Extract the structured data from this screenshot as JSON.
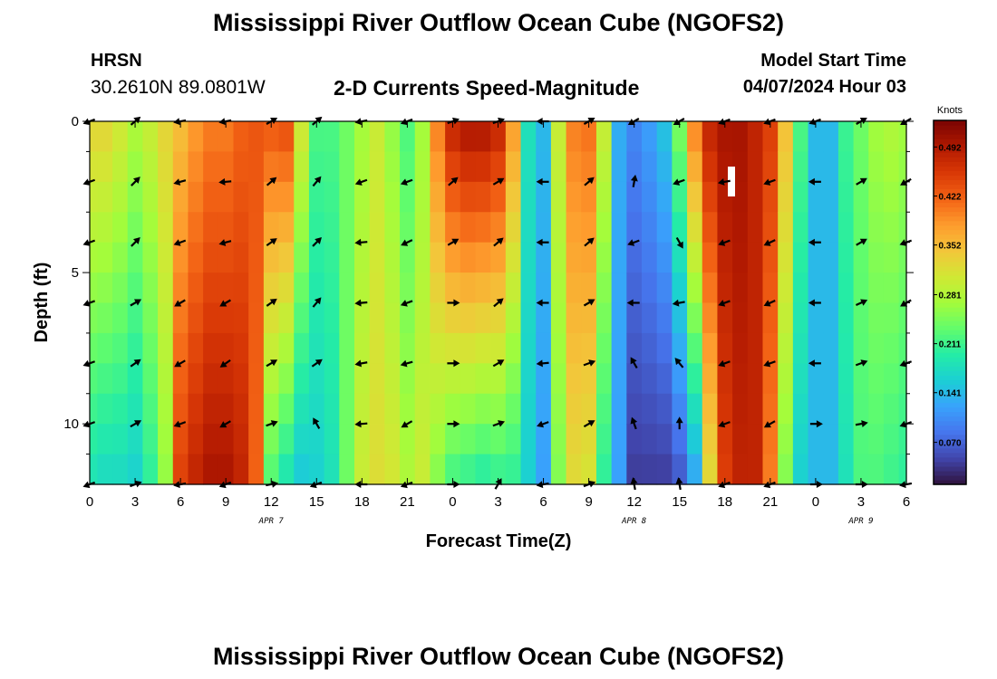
{
  "header": {
    "title": "Mississippi River Outflow Ocean Cube (NGOFS2)",
    "station": "HRSN",
    "coords": "30.2610N  89.0801W",
    "subtitle": "2-D Currents Speed-Magnitude",
    "model_start_label": "Model Start Time",
    "model_start_value": "04/07/2024 Hour 03"
  },
  "footer": {
    "title": "Mississippi River Outflow Ocean Cube (NGOFS2)"
  },
  "chart_data": {
    "type": "heatmap",
    "xlabel": "Forecast Time(Z)",
    "ylabel": "Depth (ft)",
    "xlim": [
      0,
      54
    ],
    "ylim": [
      0,
      12
    ],
    "x_ticks": [
      0,
      3,
      6,
      9,
      12,
      15,
      18,
      21,
      24,
      27,
      30,
      33,
      36,
      39,
      42,
      45,
      48,
      51,
      54
    ],
    "x_tick_labels": [
      "0",
      "3",
      "6",
      "9",
      "12",
      "15",
      "18",
      "21",
      "0",
      "3",
      "6",
      "9",
      "12",
      "15",
      "18",
      "21",
      "0",
      "3",
      "6"
    ],
    "y_ticks": [
      0,
      5,
      10
    ],
    "y_tick_labels": [
      "0",
      "5",
      "10"
    ],
    "date_labels": [
      {
        "text": "APR 7",
        "hour": 12
      },
      {
        "text": "APR 8",
        "hour": 36
      },
      {
        "text": "APR 9",
        "hour": 51
      }
    ],
    "colorbar": {
      "unit": "Knots",
      "min": 0.01,
      "max": 0.53,
      "ticks": [
        0.07,
        0.141,
        0.211,
        0.281,
        0.352,
        0.422,
        0.492
      ],
      "tick_labels": [
        "0.070",
        "0.141",
        "0.211",
        "0.281",
        "0.352",
        "0.422",
        "0.492"
      ],
      "colors": [
        "#30123b",
        "#4145ab",
        "#4675ed",
        "#39a2fc",
        "#1bcfd4",
        "#24eca6",
        "#61fc6c",
        "#a4fc3b",
        "#d1e834",
        "#f3c63a",
        "#fe9b2d",
        "#f36315",
        "#d93806",
        "#b11901",
        "#7a0402"
      ]
    },
    "speed_profile": {
      "hours": [
        0,
        1,
        2,
        3,
        4,
        5,
        6,
        7,
        8,
        9,
        10,
        11,
        12,
        13,
        14,
        15,
        16,
        17,
        18,
        19,
        20,
        21,
        22,
        23,
        24,
        25,
        26,
        27,
        28,
        29,
        30,
        31,
        32,
        33,
        34,
        35,
        36,
        37,
        38,
        39,
        40,
        41,
        42,
        43,
        44,
        45,
        46,
        47,
        48,
        49,
        50,
        51,
        52,
        53,
        54
      ],
      "surface": [
        0.33,
        0.33,
        0.31,
        0.28,
        0.3,
        0.33,
        0.35,
        0.38,
        0.4,
        0.4,
        0.42,
        0.43,
        0.43,
        0.44,
        0.31,
        0.22,
        0.22,
        0.24,
        0.27,
        0.3,
        0.26,
        0.22,
        0.27,
        0.4,
        0.48,
        0.5,
        0.5,
        0.48,
        0.38,
        0.18,
        0.14,
        0.3,
        0.4,
        0.41,
        0.3,
        0.13,
        0.1,
        0.12,
        0.15,
        0.25,
        0.4,
        0.48,
        0.5,
        0.5,
        0.48,
        0.45,
        0.35,
        0.22,
        0.14,
        0.14,
        0.21,
        0.24,
        0.27,
        0.28,
        0.27
      ],
      "bottom": [
        0.18,
        0.17,
        0.17,
        0.16,
        0.2,
        0.26,
        0.45,
        0.48,
        0.5,
        0.5,
        0.48,
        0.42,
        0.22,
        0.18,
        0.15,
        0.16,
        0.18,
        0.24,
        0.3,
        0.32,
        0.31,
        0.28,
        0.3,
        0.25,
        0.21,
        0.2,
        0.19,
        0.2,
        0.2,
        0.16,
        0.12,
        0.25,
        0.32,
        0.31,
        0.2,
        0.12,
        0.04,
        0.04,
        0.04,
        0.06,
        0.12,
        0.32,
        0.45,
        0.48,
        0.48,
        0.4,
        0.25,
        0.16,
        0.14,
        0.14,
        0.18,
        0.22,
        0.22,
        0.21,
        0.2
      ]
    },
    "vectors": {
      "hours": [
        0,
        3,
        6,
        9,
        12,
        15,
        18,
        21,
        24,
        27,
        30,
        33,
        36,
        39,
        42,
        45,
        48,
        51,
        54
      ],
      "depths": [
        0,
        2,
        4,
        6,
        8,
        10,
        12
      ],
      "dir_deg": [
        [
          200,
          200,
          200,
          200,
          200,
          200,
          200
        ],
        [
          40,
          45,
          45,
          30,
          35,
          30,
          20
        ],
        [
          190,
          195,
          200,
          210,
          210,
          200,
          190
        ],
        [
          190,
          185,
          195,
          210,
          215,
          210,
          200
        ],
        [
          30,
          40,
          35,
          35,
          30,
          20,
          10
        ],
        [
          40,
          50,
          45,
          50,
          35,
          120,
          200
        ],
        [
          190,
          200,
          185,
          185,
          190,
          185,
          180
        ],
        [
          200,
          200,
          205,
          200,
          195,
          210,
          200
        ],
        [
          20,
          40,
          30,
          0,
          0,
          0,
          0
        ],
        [
          20,
          30,
          40,
          40,
          30,
          20,
          60
        ],
        [
          180,
          180,
          180,
          180,
          185,
          200,
          190
        ],
        [
          30,
          40,
          40,
          30,
          20,
          30,
          20
        ],
        [
          210,
          80,
          200,
          180,
          120,
          110,
          100
        ],
        [
          210,
          200,
          300,
          190,
          130,
          90,
          100
        ],
        [
          200,
          190,
          200,
          200,
          200,
          200,
          200
        ],
        [
          200,
          200,
          205,
          205,
          200,
          210,
          200
        ],
        [
          200,
          180,
          180,
          180,
          180,
          0,
          0
        ],
        [
          30,
          30,
          30,
          25,
          20,
          10,
          0
        ],
        [
          210,
          210,
          200,
          210,
          200,
          200,
          190
        ]
      ]
    }
  }
}
